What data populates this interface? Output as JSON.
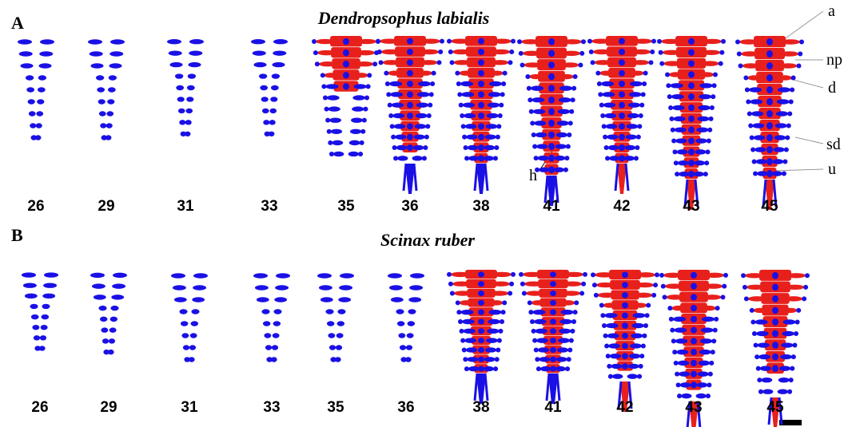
{
  "panels": [
    {
      "label": "A",
      "title": "Dendropsophus labialis",
      "stages": [
        "26",
        "29",
        "31",
        "33",
        "35",
        "36",
        "38",
        "41",
        "42",
        "43",
        "45"
      ]
    },
    {
      "label": "B",
      "title": "Scinax ruber",
      "stages": [
        "26",
        "29",
        "31",
        "33",
        "35",
        "36",
        "38",
        "41",
        "42",
        "43",
        "45"
      ]
    }
  ],
  "annotations": [
    "a",
    "np",
    "d",
    "sd",
    "u",
    "h"
  ]
}
